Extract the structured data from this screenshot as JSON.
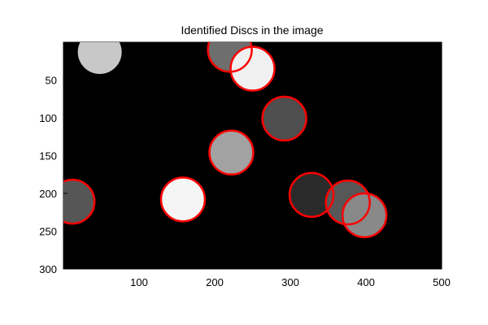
{
  "chart_data": {
    "type": "scatter",
    "title": "Identified Discs in the image",
    "xlabel": "",
    "ylabel": "",
    "xlim": [
      0,
      500
    ],
    "ylim": [
      0,
      300
    ],
    "y_axis_direction": "reversed",
    "grid": false,
    "background_color": "#000000",
    "outline_color": "#ff0000",
    "x_ticks": [
      100,
      200,
      300,
      400,
      500
    ],
    "y_ticks": [
      50,
      100,
      150,
      200,
      250,
      300
    ],
    "disc_radius": 29,
    "discs": [
      {
        "x": 48,
        "y": 13,
        "fill": "#c8c8c8",
        "outlined": false
      },
      {
        "x": 220,
        "y": 10,
        "fill": "#6e6e6e",
        "outlined": true
      },
      {
        "x": 250,
        "y": 35,
        "fill": "#f0f0f0",
        "outlined": true
      },
      {
        "x": 292,
        "y": 101,
        "fill": "#4e4e4e",
        "outlined": true
      },
      {
        "x": 222,
        "y": 146,
        "fill": "#a2a2a2",
        "outlined": true
      },
      {
        "x": 12,
        "y": 211,
        "fill": "#565656",
        "outlined": true
      },
      {
        "x": 158,
        "y": 208,
        "fill": "#f5f5f5",
        "outlined": true
      },
      {
        "x": 328,
        "y": 202,
        "fill": "#2a2a2a",
        "outlined": true
      },
      {
        "x": 376,
        "y": 212,
        "fill": "#575757",
        "outlined": true
      },
      {
        "x": 398,
        "y": 229,
        "fill": "#898989",
        "outlined": true
      }
    ]
  }
}
